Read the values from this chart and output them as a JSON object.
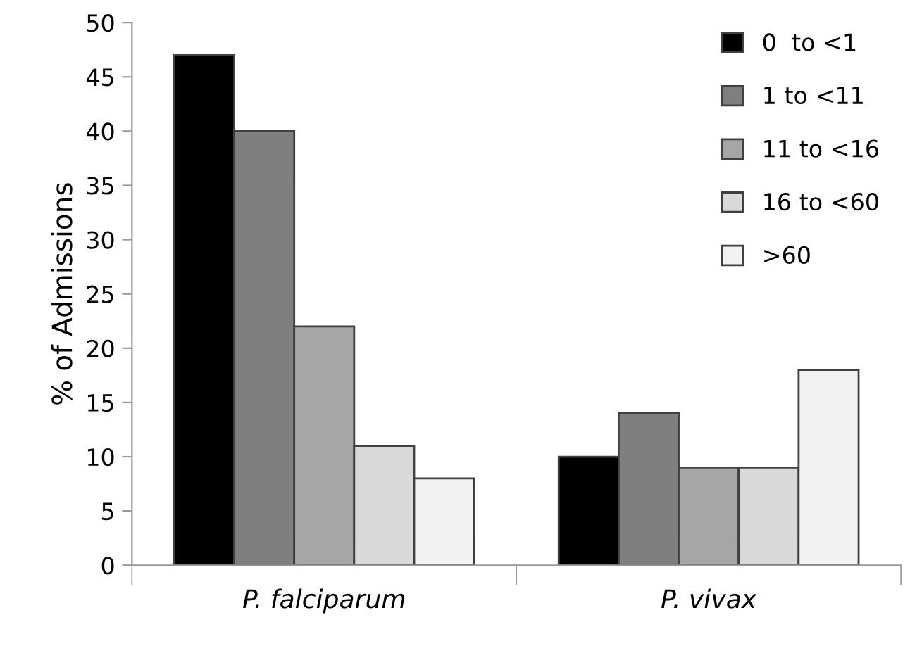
{
  "chart_data": {
    "type": "bar",
    "ylabel": "% of Admissions",
    "categories": [
      "P. falciparum",
      "P. vivax"
    ],
    "series": [
      {
        "name": "0  to <1",
        "color": "#000000",
        "values": [
          47,
          10
        ]
      },
      {
        "name": "1 to <11",
        "color": "#7f7f7f",
        "values": [
          40,
          14
        ]
      },
      {
        "name": "11 to <16",
        "color": "#a6a6a6",
        "values": [
          22,
          9
        ]
      },
      {
        "name": "16 to <60",
        "color": "#d9d9d9",
        "values": [
          11,
          9
        ]
      },
      {
        "name": ">60",
        "color": "#f2f2f2",
        "values": [
          8,
          18
        ]
      }
    ],
    "ylim": [
      0,
      50
    ],
    "yticks": [
      0,
      5,
      10,
      15,
      20,
      25,
      30,
      35,
      40,
      45,
      50
    ],
    "grid": false,
    "legend": "top right"
  }
}
